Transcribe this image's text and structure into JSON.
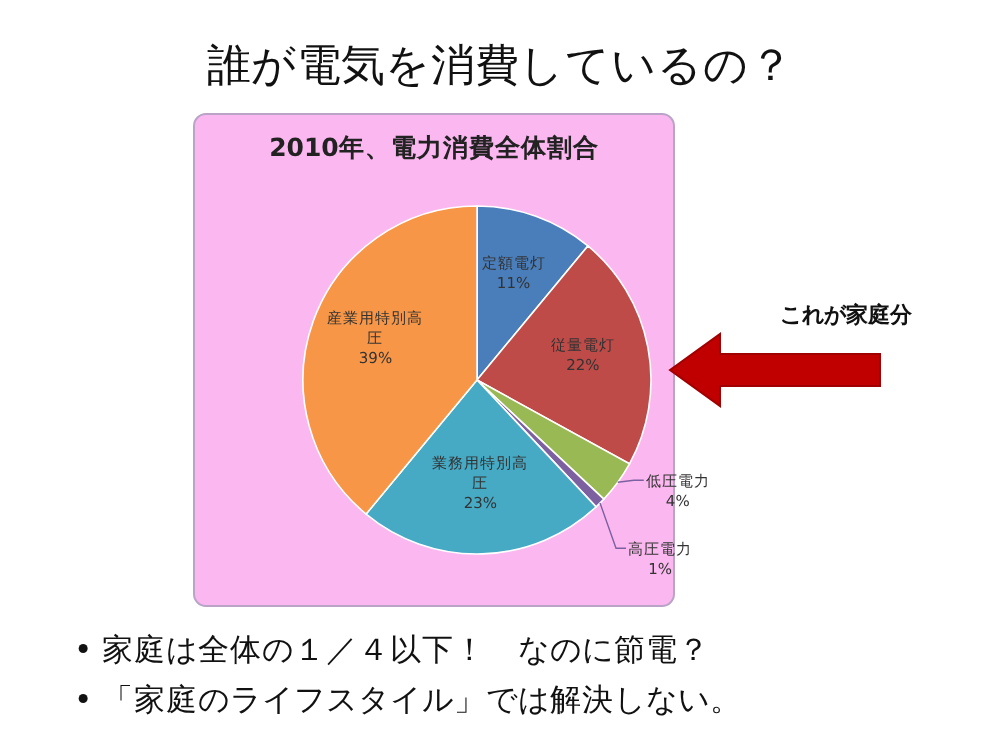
{
  "chart_data": {
    "type": "pie",
    "title": "2010年、電力消費全体割合",
    "categories": [
      "定額電灯",
      "従量電灯",
      "低圧電力",
      "高圧電力",
      "業務用特別高圧",
      "産業用特別高圧"
    ],
    "values": [
      11,
      22,
      4,
      1,
      23,
      39
    ],
    "colors": [
      "#4a7ebb",
      "#be4b48",
      "#98b954",
      "#7d60a0",
      "#46aac5",
      "#f79646"
    ],
    "value_labels": [
      "11%",
      "22%",
      "4%",
      "1%",
      "23%",
      "39%"
    ],
    "annotations": [
      "誰が電気を消費しているの？",
      "これが家庭分",
      "•  家庭は全体の１／４以下！　なのに節電？",
      "•  「家庭のライフスタイル」では解決しない。"
    ]
  }
}
